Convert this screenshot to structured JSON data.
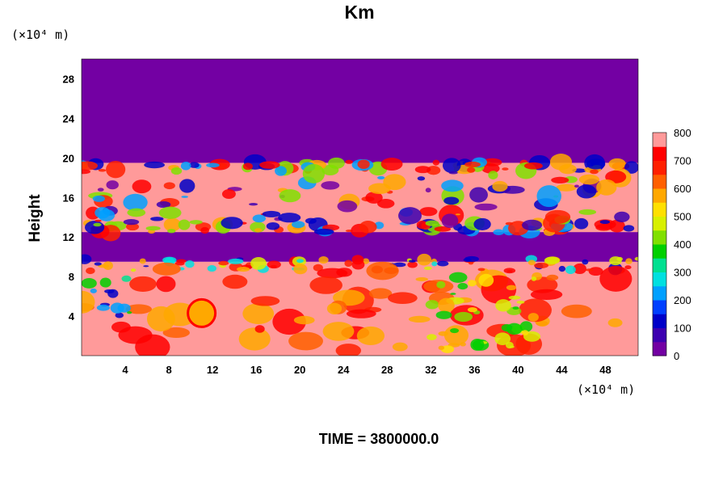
{
  "chart_data": {
    "type": "heatmap",
    "title": "Km",
    "ylabel": "Height",
    "y_unit": "(×10⁴ m)",
    "x_unit": "(×10⁴ m)",
    "xlim": [
      0,
      51
    ],
    "ylim": [
      0,
      30
    ],
    "x_ticks": [
      4,
      8,
      12,
      16,
      20,
      24,
      28,
      32,
      36,
      40,
      44,
      48
    ],
    "y_ticks": [
      4,
      8,
      12,
      16,
      20,
      24,
      28
    ],
    "footer": "TIME = 3800000.0",
    "colorbar": {
      "min": 0,
      "max": 800,
      "ticks": [
        0,
        100,
        200,
        300,
        400,
        500,
        600,
        700,
        800
      ],
      "colors": [
        "#7300a3",
        "#3d00b0",
        "#0000c8",
        "#0040ff",
        "#00a0ff",
        "#00e0e0",
        "#00e090",
        "#00d000",
        "#80e000",
        "#d8f000",
        "#ffe000",
        "#ffa800",
        "#ff6000",
        "#ff2000",
        "#ff0000",
        "#ff9a9a"
      ]
    },
    "layers": [
      {
        "from": 0,
        "to": 9.5,
        "level": 800
      },
      {
        "from": 9.5,
        "to": 12.5,
        "level": 0
      },
      {
        "from": 12.5,
        "to": 19.5,
        "level": 800
      },
      {
        "from": 19.5,
        "to": 30,
        "level": 0
      }
    ]
  }
}
